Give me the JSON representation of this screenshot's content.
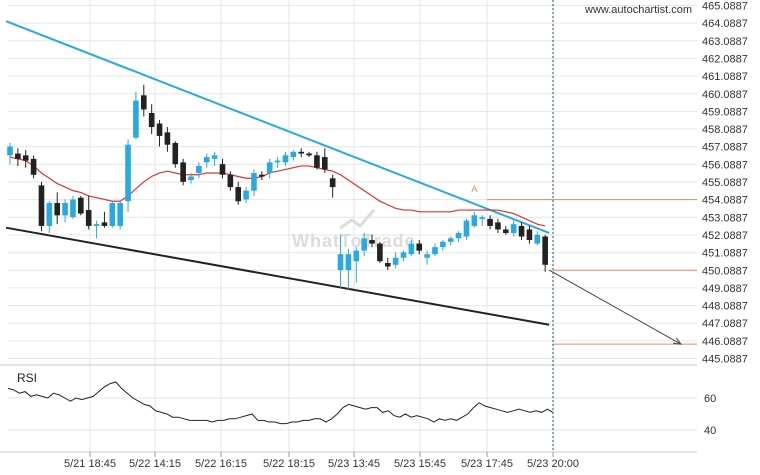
{
  "watermark": {
    "url": "www.autochartist.com",
    "logo_text": "WhatToTrade"
  },
  "chart_data": {
    "type": "candlestick",
    "price_axis": {
      "labels": [
        "465.0887",
        "464.0887",
        "463.0887",
        "462.0887",
        "461.0887",
        "460.0887",
        "459.0887",
        "458.0887",
        "457.0887",
        "456.0887",
        "455.0887",
        "454.0887",
        "453.0887",
        "452.0887",
        "451.0887",
        "450.0887",
        "449.0887",
        "448.0887",
        "447.0887",
        "446.0887",
        "445.0887"
      ],
      "max": 465.0887,
      "min": 445.0887
    },
    "time_axis": {
      "labels": [
        "5/21 18:45",
        "5/22 14:15",
        "5/22 16:15",
        "5/22 18:15",
        "5/23 13:45",
        "5/23 15:45",
        "5/23 17:45",
        "5/23 20:00"
      ]
    },
    "candles": [
      {
        "o": 456.6,
        "h": 457.3,
        "l": 456.1,
        "c": 457.1
      },
      {
        "o": 456.7,
        "h": 457.0,
        "l": 456.0,
        "c": 456.4
      },
      {
        "o": 456.6,
        "h": 456.9,
        "l": 455.9,
        "c": 456.3
      },
      {
        "o": 456.4,
        "h": 456.6,
        "l": 455.3,
        "c": 455.5
      },
      {
        "o": 454.9,
        "h": 455.1,
        "l": 452.3,
        "c": 452.6
      },
      {
        "o": 452.6,
        "h": 454.0,
        "l": 452.2,
        "c": 453.9
      },
      {
        "o": 453.9,
        "h": 454.5,
        "l": 452.7,
        "c": 453.2
      },
      {
        "o": 453.2,
        "h": 454.1,
        "l": 452.8,
        "c": 453.9
      },
      {
        "o": 453.1,
        "h": 454.3,
        "l": 453.0,
        "c": 454.1
      },
      {
        "o": 454.2,
        "h": 454.3,
        "l": 453.2,
        "c": 453.3
      },
      {
        "o": 453.5,
        "h": 454.3,
        "l": 452.4,
        "c": 452.6
      },
      {
        "o": 452.6,
        "h": 452.9,
        "l": 451.9,
        "c": 452.7
      },
      {
        "o": 452.8,
        "h": 453.4,
        "l": 452.5,
        "c": 452.6
      },
      {
        "o": 452.6,
        "h": 454.0,
        "l": 452.5,
        "c": 453.9
      },
      {
        "o": 452.6,
        "h": 454.0,
        "l": 452.4,
        "c": 453.9
      },
      {
        "o": 454.0,
        "h": 457.5,
        "l": 453.4,
        "c": 457.2
      },
      {
        "o": 457.6,
        "h": 460.2,
        "l": 457.5,
        "c": 459.7
      },
      {
        "o": 460.0,
        "h": 460.6,
        "l": 458.8,
        "c": 459.2
      },
      {
        "o": 459.0,
        "h": 459.5,
        "l": 457.8,
        "c": 458.2
      },
      {
        "o": 458.4,
        "h": 458.6,
        "l": 457.1,
        "c": 457.7
      },
      {
        "o": 457.9,
        "h": 458.2,
        "l": 456.8,
        "c": 457.2
      },
      {
        "o": 457.3,
        "h": 457.4,
        "l": 455.9,
        "c": 456.1
      },
      {
        "o": 456.2,
        "h": 456.4,
        "l": 454.9,
        "c": 455.1
      },
      {
        "o": 455.2,
        "h": 455.6,
        "l": 455.0,
        "c": 455.4
      },
      {
        "o": 455.6,
        "h": 456.2,
        "l": 455.3,
        "c": 456.0
      },
      {
        "o": 456.2,
        "h": 456.7,
        "l": 455.9,
        "c": 456.5
      },
      {
        "o": 456.4,
        "h": 456.8,
        "l": 456.0,
        "c": 456.6
      },
      {
        "o": 456.1,
        "h": 456.4,
        "l": 455.3,
        "c": 455.5
      },
      {
        "o": 455.5,
        "h": 455.7,
        "l": 454.6,
        "c": 454.8
      },
      {
        "o": 454.8,
        "h": 455.1,
        "l": 453.8,
        "c": 454.0
      },
      {
        "o": 454.1,
        "h": 454.8,
        "l": 453.9,
        "c": 454.6
      },
      {
        "o": 454.6,
        "h": 455.8,
        "l": 454.3,
        "c": 455.6
      },
      {
        "o": 455.5,
        "h": 455.7,
        "l": 455.2,
        "c": 455.4
      },
      {
        "o": 455.6,
        "h": 456.4,
        "l": 455.3,
        "c": 456.2
      },
      {
        "o": 456.2,
        "h": 456.5,
        "l": 455.9,
        "c": 456.3
      },
      {
        "o": 456.2,
        "h": 456.8,
        "l": 456.0,
        "c": 456.6
      },
      {
        "o": 456.5,
        "h": 456.9,
        "l": 456.3,
        "c": 456.8
      },
      {
        "o": 456.8,
        "h": 457.0,
        "l": 456.5,
        "c": 456.7
      },
      {
        "o": 456.7,
        "h": 456.8,
        "l": 456.5,
        "c": 456.6
      },
      {
        "o": 456.6,
        "h": 456.8,
        "l": 455.8,
        "c": 455.9
      },
      {
        "o": 456.5,
        "h": 457.0,
        "l": 455.6,
        "c": 455.8
      },
      {
        "o": 455.3,
        "h": 455.5,
        "l": 454.2,
        "c": 454.8
      },
      {
        "o": 450.1,
        "h": 452.1,
        "l": 449.1,
        "c": 451.0
      },
      {
        "o": 450.1,
        "h": 451.3,
        "l": 449.0,
        "c": 451.0
      },
      {
        "o": 450.6,
        "h": 451.4,
        "l": 449.4,
        "c": 451.2
      },
      {
        "o": 451.2,
        "h": 452.2,
        "l": 450.9,
        "c": 451.9
      },
      {
        "o": 451.8,
        "h": 452.1,
        "l": 451.4,
        "c": 451.6
      },
      {
        "o": 451.6,
        "h": 451.7,
        "l": 450.5,
        "c": 450.6
      },
      {
        "o": 450.5,
        "h": 450.8,
        "l": 450.1,
        "c": 450.3
      },
      {
        "o": 450.4,
        "h": 451.1,
        "l": 450.2,
        "c": 450.8
      },
      {
        "o": 450.8,
        "h": 451.2,
        "l": 450.6,
        "c": 451.1
      },
      {
        "o": 451.0,
        "h": 451.8,
        "l": 450.9,
        "c": 451.6
      },
      {
        "o": 451.6,
        "h": 451.8,
        "l": 451.0,
        "c": 451.2
      },
      {
        "o": 450.8,
        "h": 451.2,
        "l": 450.4,
        "c": 451.0
      },
      {
        "o": 451.0,
        "h": 451.6,
        "l": 450.9,
        "c": 451.4
      },
      {
        "o": 451.4,
        "h": 451.8,
        "l": 451.2,
        "c": 451.7
      },
      {
        "o": 451.7,
        "h": 452.0,
        "l": 451.5,
        "c": 451.9
      },
      {
        "o": 451.9,
        "h": 452.3,
        "l": 451.7,
        "c": 452.2
      },
      {
        "o": 452.0,
        "h": 453.0,
        "l": 451.8,
        "c": 452.9
      },
      {
        "o": 452.6,
        "h": 453.4,
        "l": 452.5,
        "c": 453.2
      },
      {
        "o": 453.0,
        "h": 453.2,
        "l": 452.6,
        "c": 453.1
      },
      {
        "o": 453.0,
        "h": 453.2,
        "l": 452.4,
        "c": 452.6
      },
      {
        "o": 452.8,
        "h": 453.0,
        "l": 452.2,
        "c": 452.4
      },
      {
        "o": 452.4,
        "h": 452.6,
        "l": 452.1,
        "c": 452.2
      },
      {
        "o": 452.2,
        "h": 452.9,
        "l": 452.0,
        "c": 452.7
      },
      {
        "o": 452.6,
        "h": 452.8,
        "l": 451.8,
        "c": 452.0
      },
      {
        "o": 452.4,
        "h": 452.6,
        "l": 451.6,
        "c": 451.8
      },
      {
        "o": 451.6,
        "h": 452.3,
        "l": 451.5,
        "c": 452.1
      },
      {
        "o": 452.0,
        "h": 452.1,
        "l": 450.0,
        "c": 450.4
      }
    ],
    "moving_average": [
      456.5,
      456.4,
      456.3,
      456.0,
      455.6,
      455.3,
      455.0,
      454.8,
      454.6,
      454.5,
      454.3,
      454.2,
      454.1,
      454.0,
      454.0,
      454.3,
      454.7,
      455.1,
      455.4,
      455.6,
      455.7,
      455.6,
      455.5,
      455.5,
      455.5,
      455.6,
      455.6,
      455.6,
      455.5,
      455.4,
      455.3,
      455.3,
      455.4,
      455.6,
      455.7,
      455.8,
      455.9,
      456.0,
      456.0,
      455.9,
      455.8,
      455.7,
      455.5,
      455.2,
      454.9,
      454.6,
      454.3,
      454.0,
      453.8,
      453.6,
      453.5,
      453.5,
      453.4,
      453.4,
      453.4,
      453.4,
      453.4,
      453.5,
      453.5,
      453.5,
      453.5,
      453.5,
      453.5,
      453.4,
      453.3,
      453.1,
      452.9,
      452.7,
      452.6
    ],
    "resistance_line": {
      "from": {
        "candle": -0.5,
        "price": 464.2
      },
      "to": {
        "candle": 68.5,
        "price": 452.2
      }
    },
    "support_line": {
      "from": {
        "candle": -0.5,
        "price": 452.5
      },
      "to": {
        "candle": 68.5,
        "price": 447.0
      }
    },
    "levels": [
      {
        "price": 454.0887,
        "color": "#e58b5e"
      },
      {
        "price": 450.0887,
        "color": "#e58b5e"
      },
      {
        "price": 445.9,
        "color": "#e58b5e"
      }
    ],
    "projection": {
      "from": {
        "candle": 68.5,
        "price": 450.1
      },
      "to_price": 445.9,
      "to_x_label": "5/23 20:00"
    },
    "marker": {
      "label": "A",
      "candle": 59,
      "price": 454.4
    },
    "rsi": {
      "title": "RSI",
      "axis_labels": [
        "60",
        "40"
      ],
      "axis_values": [
        60,
        40
      ],
      "values": [
        66,
        65,
        63,
        64,
        61,
        62,
        61,
        60,
        63,
        62,
        60,
        58,
        60,
        59,
        60,
        61,
        64,
        67,
        69,
        70,
        66,
        63,
        60,
        58,
        56,
        55,
        52,
        51,
        50,
        48,
        48,
        47,
        46,
        46,
        46,
        46,
        45,
        46,
        46,
        47,
        47,
        48,
        49,
        50,
        46,
        46,
        45,
        45,
        44,
        44,
        45,
        45,
        46,
        46,
        47,
        47,
        45,
        47,
        50,
        54,
        56,
        55,
        54,
        53,
        54,
        54,
        51,
        52,
        49,
        48,
        50,
        48,
        49,
        48,
        47,
        45,
        47,
        46,
        47,
        46,
        48,
        50,
        54,
        57,
        55,
        54,
        53,
        52,
        51,
        52,
        53,
        52,
        51,
        52,
        51,
        53,
        51
      ]
    },
    "colors": {
      "bull": "#29a9e1",
      "bear": "#222222",
      "ma": "#e0312e",
      "resistance": "#29a9e1",
      "support": "#222222",
      "rsi_line": "#222222",
      "grid": "#e6e6e6",
      "level": "#e58b5e",
      "vline": "#1a5a5a"
    }
  }
}
